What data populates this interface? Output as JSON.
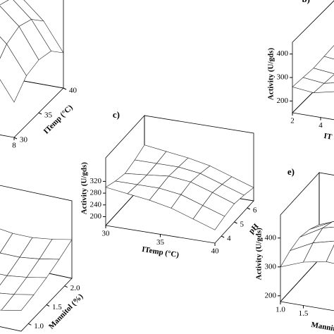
{
  "chart_data": [
    {
      "type": "surface3d",
      "ylabel": "ITemp (°C)",
      "xticks": [
        8
      ],
      "xlim": [
        2,
        8
      ],
      "yticks": [
        30,
        35,
        40
      ],
      "ylim": [
        30,
        40
      ],
      "zlim": [
        150,
        450
      ],
      "z": [
        [
          250,
          330,
          380,
          380,
          330,
          250
        ],
        [
          290,
          370,
          420,
          420,
          370,
          290
        ],
        [
          300,
          385,
          435,
          435,
          385,
          300
        ],
        [
          290,
          370,
          420,
          420,
          370,
          290
        ],
        [
          250,
          330,
          380,
          380,
          330,
          250
        ]
      ]
    },
    {
      "type": "surface3d",
      "label": "b)",
      "zlabel": "Activity (U/gds)",
      "xlabel": "IT (Da",
      "xticks": [
        2,
        4
      ],
      "xlim": [
        2,
        8
      ],
      "ylim": [
        0,
        1
      ],
      "zticks": [
        200,
        300,
        400
      ],
      "zlim": [
        150,
        450
      ],
      "z": [
        [
          260,
          250,
          270,
          300,
          330
        ],
        [
          255,
          245,
          265,
          310,
          350
        ],
        [
          250,
          240,
          260,
          320,
          380
        ],
        [
          255,
          245,
          265,
          310,
          350
        ],
        [
          260,
          250,
          270,
          300,
          330
        ]
      ]
    },
    {
      "type": "surface3d",
      "label": "c)",
      "zlabel": "Activity (U/gds)",
      "xlabel": "ITemp (°C)",
      "ylabel": "pH",
      "xticks": [
        30,
        35,
        40
      ],
      "xlim": [
        30,
        40
      ],
      "yticks": [
        4,
        5,
        6
      ],
      "ylim": [
        3.5,
        6.5
      ],
      "zticks": [
        200,
        240,
        280,
        320
      ],
      "zlim": [
        170,
        400
      ],
      "z": [
        [
          300,
          290,
          280,
          265,
          240,
          215
        ],
        [
          285,
          285,
          285,
          275,
          250,
          225
        ],
        [
          275,
          282,
          290,
          282,
          258,
          232
        ],
        [
          285,
          285,
          285,
          275,
          250,
          225
        ],
        [
          300,
          290,
          280,
          265,
          240,
          215
        ]
      ]
    },
    {
      "type": "surface3d",
      "ylabel": "Mannitol (%)",
      "xlim": [
        0,
        1
      ],
      "yticks": [
        {
          "value": 1,
          "label": "1.0"
        },
        {
          "value": 1.5,
          "label": "1.5"
        },
        {
          "value": 2,
          "label": "2.0"
        }
      ],
      "ylim": [
        0.8,
        2.2
      ],
      "zlim": [
        150,
        450
      ],
      "z": [
        [
          230,
          215,
          205,
          205,
          215,
          230
        ],
        [
          240,
          225,
          215,
          215,
          225,
          240
        ],
        [
          255,
          240,
          230,
          230,
          240,
          255
        ],
        [
          275,
          260,
          250,
          250,
          260,
          275
        ],
        [
          300,
          285,
          275,
          275,
          285,
          300
        ]
      ]
    },
    {
      "type": "surface3d",
      "label": "e)",
      "zlabel": "Activity (U/gds)",
      "xlabel": "Mannitol",
      "xticks": [
        {
          "value": 1,
          "label": "1.0"
        },
        {
          "value": 1.5,
          "label": "1.5"
        }
      ],
      "xlim": [
        1,
        3
      ],
      "ylim": [
        0,
        1
      ],
      "zticks": [
        200,
        300,
        400
      ],
      "zlim": [
        180,
        480
      ],
      "z": [
        [
          300,
          330,
          345,
          340,
          320
        ],
        [
          320,
          360,
          380,
          370,
          340
        ],
        [
          330,
          375,
          395,
          385,
          350
        ],
        [
          320,
          360,
          380,
          370,
          340
        ],
        [
          300,
          330,
          345,
          340,
          320
        ]
      ]
    }
  ]
}
